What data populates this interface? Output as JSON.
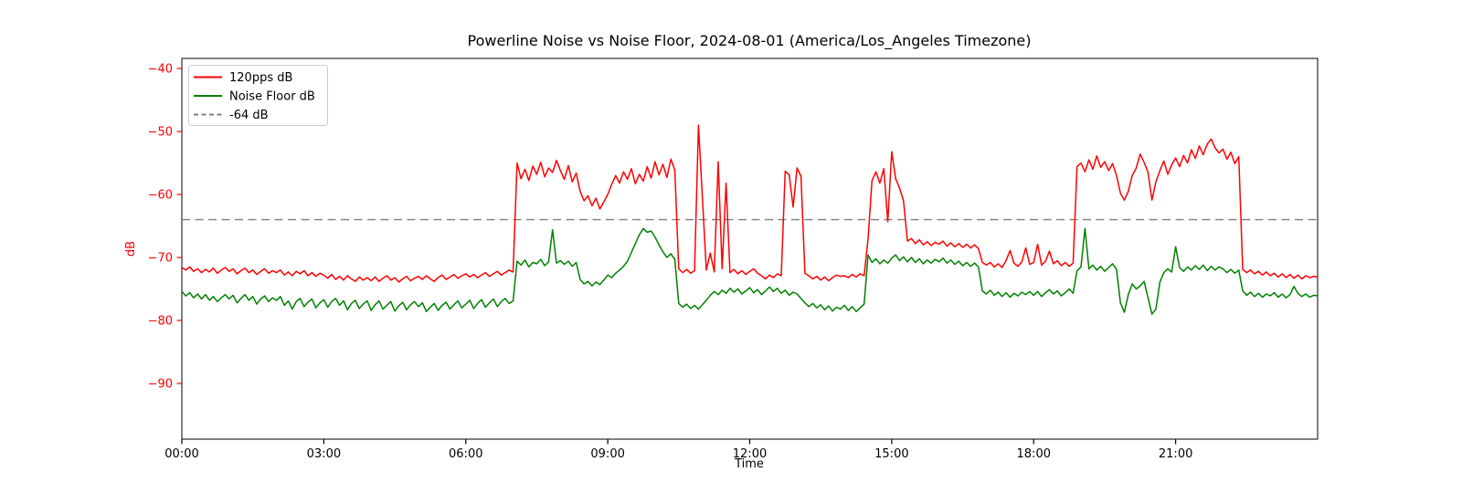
{
  "chart_data": {
    "type": "line",
    "title": "Powerline Noise vs Noise Floor, 2024-08-01 (America/Los_Angeles Timezone)",
    "xlabel": "Time",
    "ylabel": "dB",
    "grid": false,
    "legend_position": "upper left",
    "x_unit": "hours_local_time",
    "x_range_hours": [
      0,
      24
    ],
    "y_range": [
      -98.8,
      -38.4
    ],
    "x_ticks": [
      "00:00",
      "03:00",
      "06:00",
      "09:00",
      "12:00",
      "15:00",
      "18:00",
      "21:00"
    ],
    "x_tick_hours": [
      0,
      3,
      6,
      9,
      12,
      15,
      18,
      21
    ],
    "y_ticks": [
      "−40",
      "−50",
      "−60",
      "−70",
      "−80",
      "−90"
    ],
    "y_tick_values": [
      -40,
      -50,
      -60,
      -70,
      -80,
      -90
    ],
    "y_tick_color": "#ff0000",
    "threshold": {
      "label": "-64 dB",
      "value": -64,
      "color": "#7f7f7f",
      "style": "dashed"
    },
    "sample_interval_minutes": 5,
    "series": [
      {
        "name": "120pps dB",
        "color": "#ff0000",
        "style": "solid",
        "values": [
          -71.6,
          -72.0,
          -71.5,
          -72.2,
          -71.8,
          -72.4,
          -71.9,
          -72.3,
          -71.7,
          -72.5,
          -72.0,
          -71.6,
          -72.2,
          -71.8,
          -72.6,
          -72.1,
          -71.7,
          -72.4,
          -72.0,
          -72.7,
          -72.2,
          -71.8,
          -72.5,
          -72.1,
          -72.4,
          -72.0,
          -72.8,
          -72.3,
          -72.9,
          -72.2,
          -72.6,
          -72.1,
          -72.9,
          -72.4,
          -73.0,
          -72.5,
          -72.8,
          -73.3,
          -72.7,
          -73.5,
          -73.0,
          -73.6,
          -72.9,
          -73.4,
          -73.8,
          -73.1,
          -73.6,
          -73.2,
          -73.7,
          -73.1,
          -73.8,
          -73.3,
          -72.9,
          -73.6,
          -73.2,
          -73.9,
          -73.4,
          -73.0,
          -73.7,
          -73.3,
          -73.0,
          -73.5,
          -72.9,
          -73.4,
          -73.8,
          -73.2,
          -72.8,
          -73.5,
          -73.1,
          -72.7,
          -73.3,
          -72.9,
          -72.6,
          -73.1,
          -72.7,
          -73.2,
          -72.8,
          -72.4,
          -73.0,
          -72.6,
          -72.2,
          -72.8,
          -72.4,
          -72.0,
          -72.3,
          -55.0,
          -57.5,
          -56.0,
          -57.8,
          -55.5,
          -56.8,
          -54.9,
          -57.2,
          -55.8,
          -56.5,
          -54.6,
          -56.2,
          -57.6,
          -55.4,
          -58.0,
          -56.6,
          -59.5,
          -61.0,
          -60.2,
          -61.8,
          -60.6,
          -62.3,
          -61.2,
          -60.0,
          -58.4,
          -57.0,
          -58.2,
          -56.4,
          -57.6,
          -55.9,
          -58.3,
          -56.8,
          -57.9,
          -55.6,
          -57.4,
          -54.8,
          -56.9,
          -55.2,
          -57.3,
          -54.4,
          -56.1,
          -71.8,
          -72.4,
          -71.9,
          -72.5,
          -72.1,
          -49.0,
          -60.5,
          -72.0,
          -69.3,
          -72.3,
          -54.8,
          -71.8,
          -58.2,
          -72.4,
          -71.9,
          -72.6,
          -72.1,
          -72.7,
          -72.2,
          -71.8,
          -72.5,
          -72.9,
          -73.4,
          -72.8,
          -73.2,
          -72.6,
          -72.9,
          -56.3,
          -56.9,
          -62.0,
          -55.8,
          -57.1,
          -72.5,
          -72.9,
          -73.4,
          -73.0,
          -73.6,
          -73.1,
          -73.7,
          -73.2,
          -72.8,
          -73.0,
          -72.9,
          -73.2,
          -72.7,
          -73.1,
          -72.6,
          -72.9,
          -67.0,
          -57.8,
          -56.4,
          -58.2,
          -55.9,
          -64.3,
          -53.2,
          -57.5,
          -59.0,
          -61.0,
          -67.4,
          -67.0,
          -67.8,
          -67.2,
          -68.0,
          -67.5,
          -68.1,
          -67.6,
          -67.9,
          -67.4,
          -68.2,
          -67.7,
          -68.3,
          -67.8,
          -68.4,
          -67.9,
          -68.5,
          -68.0,
          -68.6,
          -70.8,
          -71.2,
          -70.8,
          -71.5,
          -71.0,
          -71.6,
          -70.5,
          -68.9,
          -70.9,
          -71.4,
          -70.7,
          -68.5,
          -71.1,
          -70.8,
          -67.9,
          -71.2,
          -70.6,
          -69.0,
          -71.0,
          -70.5,
          -71.3,
          -70.8,
          -71.4,
          -70.9,
          -55.6,
          -55.0,
          -56.4,
          -54.5,
          -56.0,
          -53.9,
          -55.7,
          -54.8,
          -56.2,
          -55.1,
          -57.0,
          -59.8,
          -60.9,
          -59.5,
          -57.0,
          -55.8,
          -53.6,
          -54.9,
          -56.5,
          -60.9,
          -58.0,
          -56.2,
          -54.7,
          -56.8,
          -55.3,
          -54.2,
          -55.6,
          -53.8,
          -55.0,
          -52.9,
          -54.3,
          -52.3,
          -53.7,
          -52.0,
          -51.2,
          -52.6,
          -53.4,
          -52.8,
          -54.4,
          -53.3,
          -55.1,
          -54.0,
          -71.9,
          -72.4,
          -72.0,
          -72.6,
          -72.2,
          -72.8,
          -72.3,
          -72.9,
          -72.5,
          -73.1,
          -72.6,
          -73.2,
          -72.7,
          -73.3,
          -72.8,
          -73.4,
          -72.9,
          -73.2,
          -73.0,
          -73.1
        ]
      },
      {
        "name": "Noise Floor dB",
        "color": "#008000",
        "style": "solid",
        "values": [
          -75.4,
          -76.1,
          -75.6,
          -76.4,
          -75.8,
          -76.6,
          -75.9,
          -76.8,
          -76.2,
          -77.0,
          -76.4,
          -75.9,
          -76.6,
          -76.0,
          -77.2,
          -76.5,
          -75.9,
          -76.8,
          -76.2,
          -77.4,
          -76.6,
          -76.1,
          -77.0,
          -76.4,
          -76.8,
          -76.2,
          -77.6,
          -76.9,
          -78.2,
          -77.0,
          -76.5,
          -77.8,
          -77.1,
          -76.6,
          -78.0,
          -77.2,
          -76.7,
          -77.9,
          -77.0,
          -76.5,
          -77.6,
          -76.9,
          -78.3,
          -77.3,
          -76.8,
          -78.1,
          -77.4,
          -76.9,
          -78.4,
          -77.5,
          -76.9,
          -78.2,
          -77.6,
          -77.0,
          -78.5,
          -77.7,
          -77.1,
          -78.3,
          -77.5,
          -77.0,
          -77.8,
          -77.2,
          -78.6,
          -77.9,
          -77.3,
          -78.4,
          -77.6,
          -77.1,
          -78.2,
          -77.5,
          -76.9,
          -78.0,
          -77.4,
          -76.8,
          -78.1,
          -77.3,
          -76.7,
          -77.9,
          -77.2,
          -76.6,
          -77.8,
          -77.0,
          -76.5,
          -77.3,
          -76.9,
          -70.6,
          -71.2,
          -70.4,
          -71.5,
          -70.8,
          -71.0,
          -70.3,
          -71.3,
          -70.7,
          -65.6,
          -70.9,
          -70.5,
          -71.1,
          -70.6,
          -71.4,
          -70.8,
          -73.5,
          -74.2,
          -73.8,
          -74.5,
          -73.9,
          -74.3,
          -73.6,
          -72.8,
          -73.2,
          -72.5,
          -72.0,
          -71.4,
          -70.6,
          -69.2,
          -67.8,
          -66.4,
          -65.4,
          -66.0,
          -65.8,
          -66.8,
          -68.0,
          -69.1,
          -70.0,
          -69.4,
          -70.3,
          -77.3,
          -77.9,
          -77.4,
          -78.1,
          -77.6,
          -78.2,
          -77.5,
          -76.8,
          -76.0,
          -75.4,
          -75.9,
          -75.2,
          -75.7,
          -74.9,
          -75.5,
          -75.0,
          -75.8,
          -75.3,
          -74.8,
          -75.6,
          -75.1,
          -75.9,
          -75.3,
          -74.7,
          -75.4,
          -74.9,
          -75.7,
          -75.2,
          -76.0,
          -75.5,
          -75.8,
          -76.5,
          -77.2,
          -77.8,
          -77.3,
          -78.0,
          -77.5,
          -78.3,
          -77.7,
          -78.5,
          -77.9,
          -78.2,
          -77.6,
          -78.4,
          -77.8,
          -78.6,
          -78.0,
          -77.4,
          -69.6,
          -70.8,
          -70.2,
          -71.0,
          -70.4,
          -70.9,
          -70.1,
          -69.6,
          -70.5,
          -69.9,
          -70.7,
          -70.0,
          -70.8,
          -70.2,
          -71.0,
          -70.4,
          -70.9,
          -70.3,
          -70.7,
          -70.1,
          -70.9,
          -70.4,
          -71.1,
          -70.6,
          -71.3,
          -70.8,
          -71.4,
          -70.9,
          -71.5,
          -75.3,
          -75.8,
          -75.2,
          -76.0,
          -75.5,
          -76.2,
          -75.6,
          -76.3,
          -75.7,
          -76.1,
          -75.5,
          -75.9,
          -75.4,
          -76.0,
          -75.4,
          -76.2,
          -75.6,
          -75.1,
          -75.8,
          -75.3,
          -76.1,
          -75.6,
          -75.0,
          -75.7,
          -72.1,
          -71.5,
          -65.4,
          -71.8,
          -71.2,
          -72.0,
          -71.4,
          -72.2,
          -71.6,
          -71.0,
          -71.9,
          -77.2,
          -78.7,
          -75.9,
          -74.2,
          -75.0,
          -74.5,
          -73.8,
          -76.4,
          -79.0,
          -78.2,
          -73.9,
          -72.4,
          -71.8,
          -72.3,
          -68.3,
          -71.6,
          -72.2,
          -71.5,
          -72.0,
          -71.3,
          -71.9,
          -71.2,
          -72.1,
          -71.4,
          -72.0,
          -71.5,
          -71.8,
          -72.4,
          -71.9,
          -72.5,
          -72.0,
          -75.3,
          -76.0,
          -75.5,
          -76.2,
          -75.7,
          -76.3,
          -75.8,
          -76.1,
          -75.6,
          -76.3,
          -75.8,
          -76.4,
          -75.9,
          -74.6,
          -75.7,
          -76.2,
          -75.8,
          -76.3,
          -76.0,
          -76.1
        ]
      }
    ]
  }
}
